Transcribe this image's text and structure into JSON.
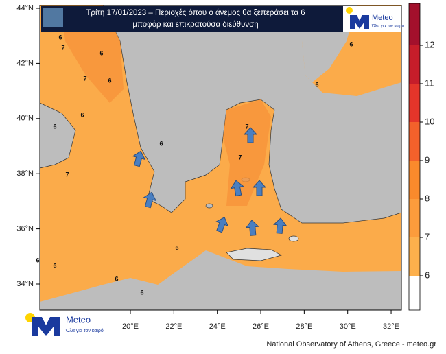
{
  "header": {
    "title_line1": "Τρίτη 17/01/2023 – Περιοχές όπου ο άνεμος θα ξεπεράσει τα 6",
    "title_line2": "μποφόρ και επικρατούσα διεύθυνση"
  },
  "logo": {
    "name": "Meteo",
    "tagline": "Όλα για τον καιρό"
  },
  "map": {
    "lat_ticks": [
      {
        "value": 44,
        "label": "44°N"
      },
      {
        "value": 42,
        "label": "42°N"
      },
      {
        "value": 40,
        "label": "40°N"
      },
      {
        "value": 38,
        "label": "38°N"
      },
      {
        "value": 36,
        "label": "36°N"
      },
      {
        "value": 34,
        "label": "34°N"
      }
    ],
    "lon_ticks": [
      {
        "value": 20,
        "label": "20°E"
      },
      {
        "value": 22,
        "label": "22°E"
      },
      {
        "value": 24,
        "label": "24°E"
      },
      {
        "value": 26,
        "label": "26°E"
      },
      {
        "value": 28,
        "label": "28°E"
      },
      {
        "value": 30,
        "label": "30°E"
      },
      {
        "value": 32,
        "label": "32°E"
      }
    ],
    "contour_labels": [
      "6",
      "7",
      "6",
      "7",
      "6",
      "6",
      "7",
      "6",
      "6",
      "7",
      "6",
      "6",
      "6",
      "6",
      "7",
      "6",
      "6",
      "6"
    ]
  },
  "colorbar": {
    "ticks": [
      6,
      7,
      8,
      9,
      10,
      11,
      12
    ],
    "colors": [
      "#ffffff",
      "#fdb04c",
      "#fc9c3c",
      "#fa8a2c",
      "#f3612b",
      "#e4352a",
      "#c61d2a",
      "#a3102c"
    ]
  },
  "footer": "National Observatory of Athens, Greece - meteo.gr"
}
